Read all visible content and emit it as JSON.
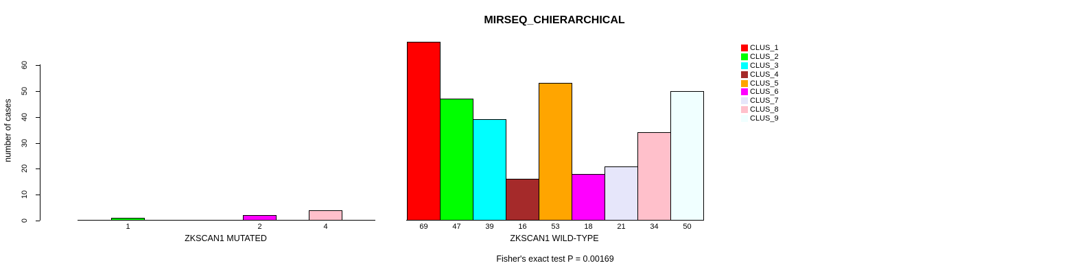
{
  "title": "MIRSEQ_CHIERARCHICAL",
  "annotation": "Fisher's exact test P = 0.00169",
  "y_axis": {
    "label": "number of cases",
    "ticks": [
      0,
      10,
      20,
      30,
      40,
      50,
      60
    ],
    "range": [
      0,
      60
    ]
  },
  "palette": [
    "#FF0000",
    "#00FF00",
    "#00FFFF",
    "#A52A2A",
    "#FFA500",
    "#FF00FF",
    "#E6E6FA",
    "#FFC0CB",
    "#F0FFFF"
  ],
  "chart_data": [
    {
      "type": "bar",
      "panel": "left",
      "xlabel": "ZKSCAN1 MUTATED",
      "ylabel": "number of cases",
      "ylim": [
        0,
        60
      ],
      "grid": false,
      "categories": [
        "CLUS_1",
        "CLUS_2",
        "CLUS_3",
        "CLUS_4",
        "CLUS_5",
        "CLUS_6",
        "CLUS_7",
        "CLUS_8",
        "CLUS_9"
      ],
      "values": [
        0,
        1,
        0,
        0,
        0,
        2,
        0,
        4,
        0
      ],
      "bar_labels": [
        "",
        "1",
        "",
        "",
        "",
        "2",
        "",
        "4",
        ""
      ],
      "colors": [
        "#FF0000",
        "#00FF00",
        "#00FFFF",
        "#A52A2A",
        "#FFA500",
        "#FF00FF",
        "#E6E6FA",
        "#FFC0CB",
        "#F0FFFF"
      ]
    },
    {
      "type": "bar",
      "panel": "right",
      "xlabel": "ZKSCAN1 WILD-TYPE",
      "ylabel": "",
      "ylim": [
        0,
        60
      ],
      "grid": false,
      "categories": [
        "CLUS_1",
        "CLUS_2",
        "CLUS_3",
        "CLUS_4",
        "CLUS_5",
        "CLUS_6",
        "CLUS_7",
        "CLUS_8",
        "CLUS_9"
      ],
      "values": [
        69,
        47,
        39,
        16,
        53,
        18,
        21,
        34,
        50
      ],
      "bar_labels": [
        "69",
        "47",
        "39",
        "16",
        "53",
        "18",
        "21",
        "34",
        "50"
      ],
      "colors": [
        "#FF0000",
        "#00FF00",
        "#00FFFF",
        "#A52A2A",
        "#FFA500",
        "#FF00FF",
        "#E6E6FA",
        "#FFC0CB",
        "#F0FFFF"
      ]
    }
  ],
  "legend": {
    "position": "right",
    "entries": [
      {
        "label": "CLUS_1",
        "color": "#FF0000"
      },
      {
        "label": "CLUS_2",
        "color": "#00FF00"
      },
      {
        "label": "CLUS_3",
        "color": "#00FFFF"
      },
      {
        "label": "CLUS_4",
        "color": "#A52A2A"
      },
      {
        "label": "CLUS_5",
        "color": "#FFA500"
      },
      {
        "label": "CLUS_6",
        "color": "#FF00FF"
      },
      {
        "label": "CLUS_7",
        "color": "#E6E6FA"
      },
      {
        "label": "CLUS_8",
        "color": "#FFC0CB"
      },
      {
        "label": "CLUS_9",
        "color": "#F0FFFF"
      }
    ]
  },
  "colors": {
    "axis": "#000000",
    "background": "#FFFFFF",
    "text": "#000000"
  }
}
